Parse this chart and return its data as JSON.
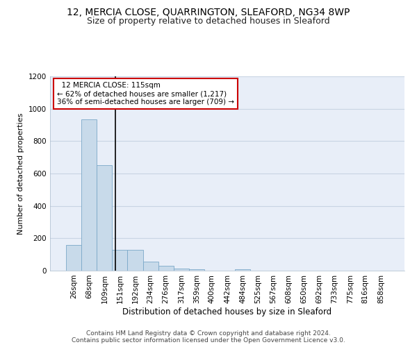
{
  "title": "12, MERCIA CLOSE, QUARRINGTON, SLEAFORD, NG34 8WP",
  "subtitle": "Size of property relative to detached houses in Sleaford",
  "xlabel": "Distribution of detached houses by size in Sleaford",
  "ylabel": "Number of detached properties",
  "categories": [
    "26sqm",
    "68sqm",
    "109sqm",
    "151sqm",
    "192sqm",
    "234sqm",
    "276sqm",
    "317sqm",
    "359sqm",
    "400sqm",
    "442sqm",
    "484sqm",
    "525sqm",
    "567sqm",
    "608sqm",
    "650sqm",
    "692sqm",
    "733sqm",
    "775sqm",
    "816sqm",
    "858sqm"
  ],
  "values": [
    160,
    935,
    650,
    130,
    128,
    55,
    30,
    15,
    10,
    0,
    0,
    10,
    0,
    0,
    0,
    0,
    0,
    0,
    0,
    0,
    0
  ],
  "bar_color": "#c8daea",
  "bar_edge_color": "#7aa8c8",
  "bar_width": 1.0,
  "vline_x": 2.72,
  "vline_color": "#000000",
  "annotation_text": "  12 MERCIA CLOSE: 115sqm\n← 62% of detached houses are smaller (1,217)\n36% of semi-detached houses are larger (709) →",
  "annotation_box_color": "white",
  "annotation_box_edgecolor": "#cc0000",
  "annotation_fontsize": 7.5,
  "ylim": [
    0,
    1200
  ],
  "yticks": [
    0,
    200,
    400,
    600,
    800,
    1000,
    1200
  ],
  "grid_color": "#c8d4e4",
  "bg_color": "#e8eef8",
  "title_fontsize": 10,
  "subtitle_fontsize": 9,
  "xlabel_fontsize": 8.5,
  "ylabel_fontsize": 8,
  "tick_fontsize": 7.5,
  "footer": "Contains HM Land Registry data © Crown copyright and database right 2024.\nContains public sector information licensed under the Open Government Licence v3.0.",
  "footer_fontsize": 6.5
}
